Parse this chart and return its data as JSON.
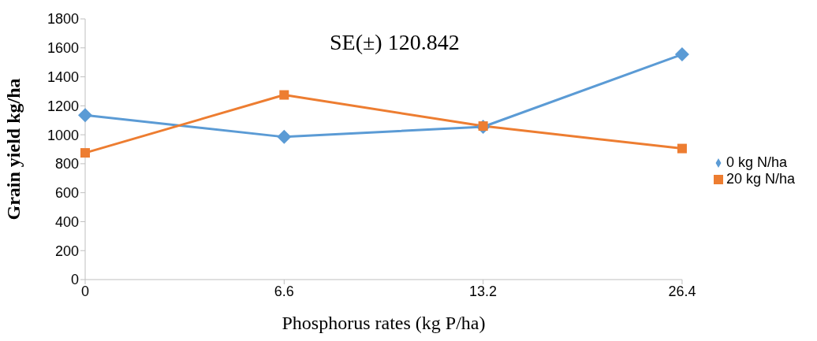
{
  "chart_data": {
    "type": "line",
    "xlabel": "Phosphorus rates (kg P/ha)",
    "ylabel": "Grain yield kg/ha",
    "annotations": [
      "SE(±) 120.842"
    ],
    "categories": [
      "0",
      "6.6",
      "13.2",
      "26.4"
    ],
    "series": [
      {
        "name": "0 kg N/ha",
        "color": "#5b9bd5",
        "marker": "diamond",
        "values": [
          1135,
          985,
          1055,
          1555
        ]
      },
      {
        "name": "20 kg N/ha",
        "color": "#ed7d31",
        "marker": "square",
        "values": [
          875,
          1275,
          1060,
          905
        ]
      }
    ],
    "ylim": [
      0,
      1800
    ],
    "yticks": [
      0,
      200,
      400,
      600,
      800,
      1000,
      1200,
      1400,
      1600,
      1800
    ],
    "grid": false,
    "legend": "right",
    "line_style": "solid"
  }
}
